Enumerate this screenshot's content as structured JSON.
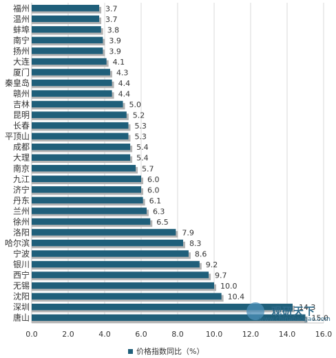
{
  "chart_data": {
    "type": "bar",
    "orientation": "horizontal",
    "categories": [
      "福州",
      "温州",
      "蚌埠",
      "南宁",
      "扬州",
      "大连",
      "厦门",
      "秦皇岛",
      "赣州",
      "吉林",
      "昆明",
      "长春",
      "平顶山",
      "成都",
      "大理",
      "南京",
      "九江",
      "济宁",
      "丹东",
      "兰州",
      "徐州",
      "洛阳",
      "哈尔滨",
      "宁波",
      "银川",
      "西宁",
      "无锡",
      "沈阳",
      "深圳",
      "唐山"
    ],
    "series": [
      {
        "name": "价格指数同比（%）",
        "values": [
          3.7,
          3.7,
          3.8,
          3.9,
          3.9,
          4.1,
          4.3,
          4.4,
          4.4,
          5.0,
          5.2,
          5.3,
          5.3,
          5.4,
          5.4,
          5.7,
          6.0,
          6.0,
          6.1,
          6.3,
          6.5,
          7.9,
          8.3,
          8.6,
          9.2,
          9.7,
          10.0,
          10.4,
          14.3,
          15.0
        ],
        "data_labels": [
          "3.7",
          "3.7",
          "3.8",
          "3.9",
          "3.9",
          "4.1",
          "4.3",
          "4.4",
          "4.4",
          "5.0",
          "5.2",
          "5.3",
          "5.3",
          "5.4",
          "5.4",
          "5.7",
          "6.0",
          "6.0",
          "6.1",
          "6.3",
          "6.5",
          "7.9",
          "8.3",
          "8.6",
          "9.2",
          "9.7",
          "10.0",
          "10.4",
          "14.3",
          "15.0"
        ]
      }
    ],
    "xlim": [
      0,
      16
    ],
    "x_ticks": [
      "0.0",
      "2.0",
      "4.0",
      "6.0",
      "8.0",
      "10.0",
      "12.0",
      "14.0",
      "16.0"
    ],
    "grid": true,
    "legend_position": "bottom",
    "colors": {
      "bar": "#1f5f7a",
      "shadow": "#b3b3b3",
      "grid": "#d9d9d9"
    }
  },
  "watermark": {
    "title": "观研天下",
    "url": "www.chinabaogao.com"
  }
}
